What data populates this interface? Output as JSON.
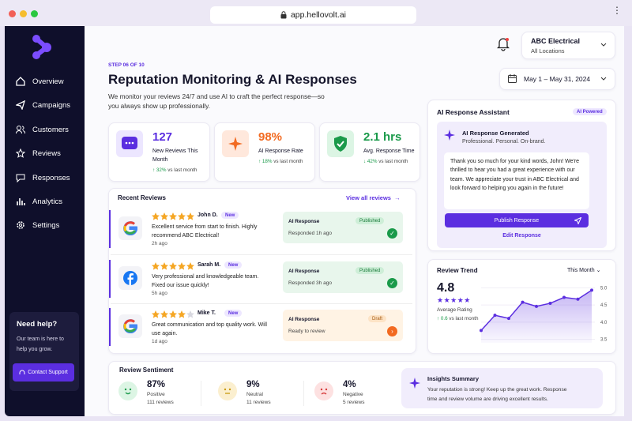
{
  "browser": {
    "url": "app.hellovolt.ai"
  },
  "sidebar": {
    "nav": [
      "Overview",
      "Campaigns",
      "Customers",
      "Reviews",
      "Responses",
      "Analytics",
      "Settings"
    ],
    "help": {
      "title": "Need help?",
      "text": "Our team is here to help you grow.",
      "button": "Contact Support"
    }
  },
  "header": {
    "business": "ABC Electrical",
    "location": "All Locations",
    "date_range": "May 1 – May 31, 2024",
    "step": "STEP 06 OF 10",
    "title": "Reputation Monitoring & AI Responses",
    "subtitle": "We monitor your reviews 24/7 and use AI to craft the perfect response—so you always show up professionally."
  },
  "stats": [
    {
      "value": "127",
      "label": "New Reviews This Month",
      "change": "32%",
      "comparison": "vs last month"
    },
    {
      "value": "98%",
      "label": "AI Response Rate",
      "change": "18%",
      "comparison": "vs last month"
    },
    {
      "value": "2.1 hrs",
      "label": "Avg. Response Time",
      "change": "42%",
      "comparison": "vs last month"
    }
  ],
  "recent_reviews": {
    "title": "Recent Reviews",
    "link": "View all reviews",
    "reviews": [
      {
        "rating": 5,
        "name": "John D.",
        "badge": "New",
        "text": "Excellent service from start to finish. Highly recommend ABC Electrical!",
        "time": "2h ago",
        "response": {
          "label": "AI Response",
          "status": "Published",
          "note": "Responded 1h ago"
        }
      },
      {
        "rating": 5,
        "name": "Sarah M.",
        "badge": "New",
        "text": "Very professional and knowledgeable team. Fixed our issue quickly!",
        "time": "5h ago",
        "response": {
          "label": "AI Response",
          "status": "Published",
          "note": "Responded 3h ago"
        }
      },
      {
        "rating": 4,
        "name": "Mike T.",
        "badge": "New",
        "text": "Great communication and top quality work. Will use again.",
        "time": "1d ago",
        "response": {
          "label": "AI Response",
          "status": "Draft",
          "note": "Ready to review"
        }
      }
    ]
  },
  "assistant": {
    "title": "AI Response Assistant",
    "badge": "AI Powered",
    "heading": "AI Response Generated",
    "tagline": "Professional. Personal. On-brand.",
    "message": "Thank you so much for your kind words, John! We're thrilled to hear you had a great experience with our team. We appreciate your trust in ABC Electrical and look forward to helping you again in the future!",
    "primary_button": "Publish Response",
    "secondary_button": "Edit Response"
  },
  "review_trend": {
    "title": "Review Trend",
    "period": "This Month",
    "average": "4.8",
    "average_label": "Average Rating",
    "change": "0.6",
    "comparison": "vs last month",
    "values": [
      3.76,
      4.2,
      4.11,
      4.58,
      4.46,
      4.55,
      4.72,
      4.67,
      4.93
    ],
    "ylim": [
      3.4,
      5.1
    ],
    "yticks": [
      {
        "value": 5,
        "label": "5.0"
      },
      {
        "value": 4.5,
        "label": "4.5"
      },
      {
        "value": 4,
        "label": "4.0"
      },
      {
        "value": 3.5,
        "label": "3.5"
      }
    ],
    "color": "#5b2ee0"
  },
  "sentiment": {
    "title": "Review Sentiment",
    "items": [
      {
        "percent": "87%",
        "label": "Positive",
        "count": "111 reviews"
      },
      {
        "percent": "9%",
        "label": "Neutral",
        "count": "11 reviews"
      },
      {
        "percent": "4%",
        "label": "Negative",
        "count": "5 reviews"
      }
    ],
    "insights": {
      "title": "Insights Summary",
      "text": "Your reputation is strong! Keep up the great work. Response time and review volume are driving excellent results."
    }
  }
}
